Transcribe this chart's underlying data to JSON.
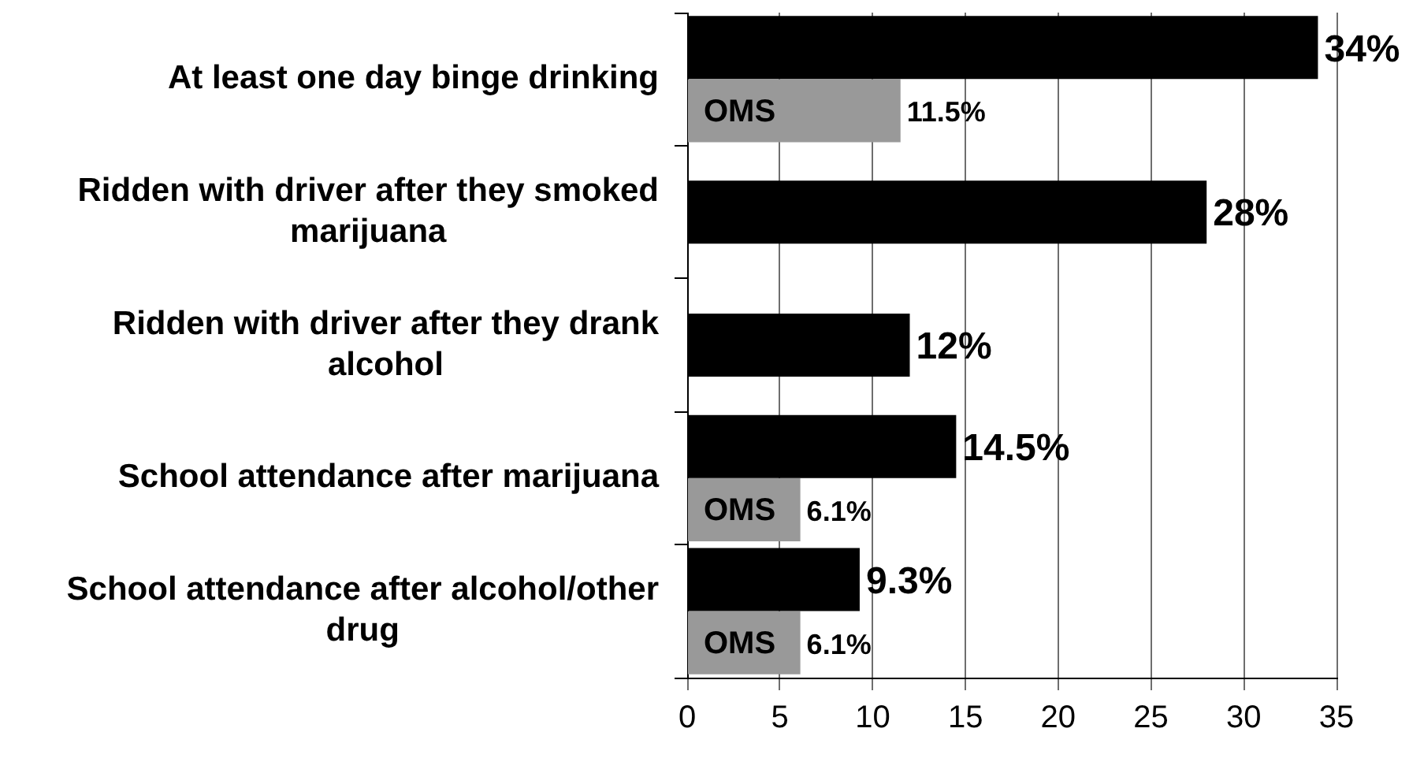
{
  "chart_data": {
    "type": "bar",
    "orientation": "horizontal",
    "categories": [
      "At least one day binge drinking",
      "Ridden with driver after they smoked marijuana",
      "Ridden with driver after they drank alcohol",
      "School attendance after marijuana",
      "School attendance after alcohol/other drug"
    ],
    "series": [
      {
        "color": "#000000",
        "values": [
          34,
          28,
          12,
          14.5,
          9.3
        ],
        "value_labels": [
          "34%",
          "28%",
          "12%",
          "14.5%",
          "9.3%"
        ]
      },
      {
        "name": "OMS",
        "color": "#999999",
        "values": [
          11.5,
          null,
          null,
          6.1,
          6.1
        ],
        "value_labels": [
          "11.5%",
          null,
          null,
          "6.1%",
          "6.1%"
        ]
      }
    ],
    "xlim": [
      0,
      35
    ],
    "xticks": [
      0,
      5,
      10,
      15,
      20,
      25,
      30,
      35
    ],
    "grid": "x"
  }
}
